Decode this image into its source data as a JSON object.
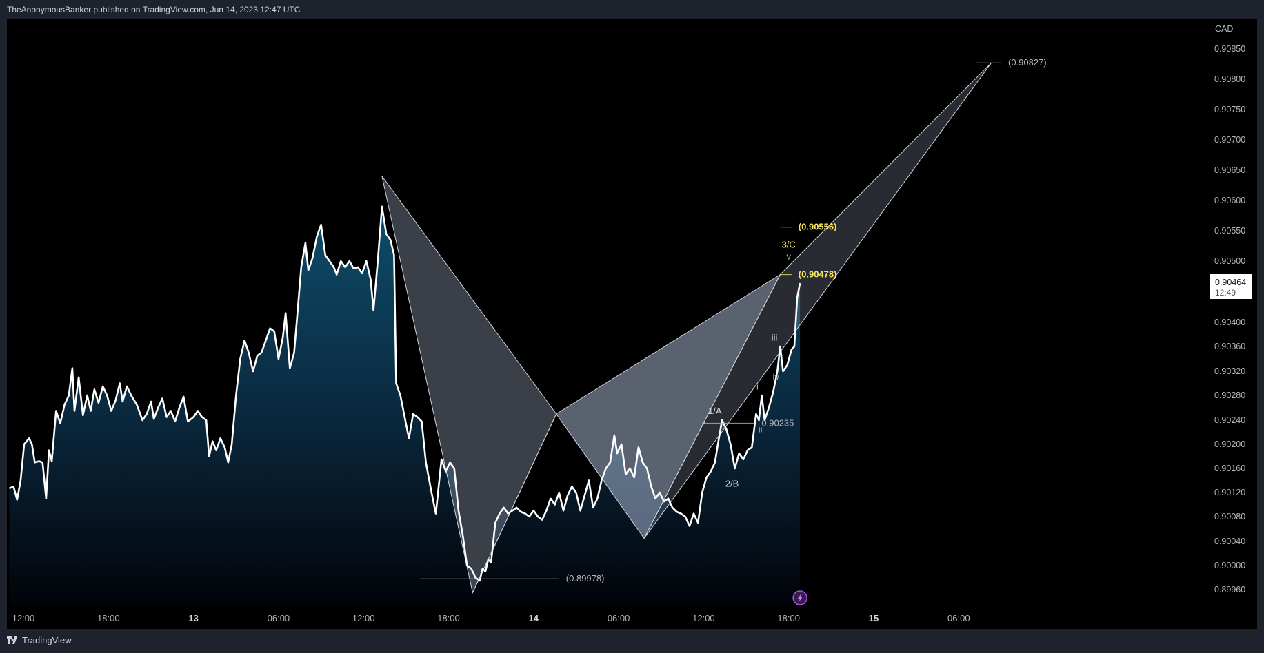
{
  "header": {
    "published_text": "TheAnonymousBanker published on TradingView.com, Jun 14, 2023 12:47 UTC"
  },
  "footer": {
    "brand": "TradingView"
  },
  "colors": {
    "background": "#000000",
    "price_line": "#ffffff",
    "area_top": "#0e4d6a",
    "pattern_fill": "#b4c4e0",
    "highlight": "#f5e663",
    "label_gray": "#b2b5be"
  },
  "chart_data": {
    "type": "area",
    "symbol_currency": "CAD",
    "last_price": {
      "value": "0.90464",
      "countdown": "12:49",
      "numeric": 0.90464
    },
    "x_axis": {
      "tick_labels": [
        {
          "t": 0,
          "label": "12:00",
          "bold": false
        },
        {
          "t": 6,
          "label": "18:00",
          "bold": false
        },
        {
          "t": 12,
          "label": "13",
          "bold": true
        },
        {
          "t": 18,
          "label": "06:00",
          "bold": false
        },
        {
          "t": 24,
          "label": "12:00",
          "bold": false
        },
        {
          "t": 30,
          "label": "18:00",
          "bold": false
        },
        {
          "t": 36,
          "label": "14",
          "bold": true
        },
        {
          "t": 42,
          "label": "06:00",
          "bold": false
        },
        {
          "t": 48,
          "label": "12:00",
          "bold": false
        },
        {
          "t": 54,
          "label": "18:00",
          "bold": false
        },
        {
          "t": 60,
          "label": "15",
          "bold": true
        },
        {
          "t": 66,
          "label": "06:00",
          "bold": false
        }
      ]
    },
    "y_axis": {
      "tick_labels": [
        "0.90850",
        "0.90800",
        "0.90750",
        "0.90700",
        "0.90650",
        "0.90600",
        "0.90550",
        "0.90500",
        "0.90400",
        "0.90360",
        "0.90320",
        "0.90280",
        "0.90240",
        "0.90200",
        "0.90160",
        "0.90120",
        "0.90080",
        "0.90040",
        "0.90000",
        "0.89960"
      ],
      "scale": "nonlinear"
    },
    "series": [
      {
        "values": [
          [
            -1.0,
            0.90127
          ],
          [
            -0.7,
            0.9013
          ],
          [
            -0.45,
            0.90108
          ],
          [
            -0.2,
            0.9014
          ],
          [
            0.05,
            0.902
          ],
          [
            0.4,
            0.9021
          ],
          [
            0.6,
            0.902
          ],
          [
            0.8,
            0.9017
          ],
          [
            1.1,
            0.90172
          ],
          [
            1.35,
            0.9017
          ],
          [
            1.6,
            0.9011
          ],
          [
            1.8,
            0.9019
          ],
          [
            2.0,
            0.90172
          ],
          [
            2.3,
            0.90255
          ],
          [
            2.6,
            0.90235
          ],
          [
            2.9,
            0.90265
          ],
          [
            3.2,
            0.9028
          ],
          [
            3.45,
            0.90325
          ],
          [
            3.6,
            0.90255
          ],
          [
            3.9,
            0.9031
          ],
          [
            4.2,
            0.90248
          ],
          [
            4.5,
            0.9028
          ],
          [
            4.75,
            0.90255
          ],
          [
            5.0,
            0.9029
          ],
          [
            5.3,
            0.90268
          ],
          [
            5.6,
            0.90295
          ],
          [
            5.9,
            0.9028
          ],
          [
            6.2,
            0.90255
          ],
          [
            6.5,
            0.90272
          ],
          [
            6.8,
            0.903
          ],
          [
            7.0,
            0.9027
          ],
          [
            7.3,
            0.90295
          ],
          [
            7.6,
            0.9028
          ],
          [
            8.0,
            0.90265
          ],
          [
            8.4,
            0.9024
          ],
          [
            8.7,
            0.9025
          ],
          [
            9.0,
            0.9027
          ],
          [
            9.2,
            0.90242
          ],
          [
            9.5,
            0.9026
          ],
          [
            9.8,
            0.90275
          ],
          [
            10.1,
            0.90245
          ],
          [
            10.4,
            0.90255
          ],
          [
            10.7,
            0.90238
          ],
          [
            11.0,
            0.9026
          ],
          [
            11.3,
            0.90278
          ],
          [
            11.6,
            0.90238
          ],
          [
            12.0,
            0.90245
          ],
          [
            12.3,
            0.90255
          ],
          [
            12.6,
            0.90245
          ],
          [
            12.9,
            0.9024
          ],
          [
            13.1,
            0.9018
          ],
          [
            13.35,
            0.90205
          ],
          [
            13.6,
            0.9019
          ],
          [
            13.9,
            0.9021
          ],
          [
            14.2,
            0.90195
          ],
          [
            14.45,
            0.9017
          ],
          [
            14.7,
            0.902
          ],
          [
            15.0,
            0.9028
          ],
          [
            15.3,
            0.9034
          ],
          [
            15.6,
            0.9037
          ],
          [
            15.9,
            0.9035
          ],
          [
            16.2,
            0.9032
          ],
          [
            16.5,
            0.90345
          ],
          [
            16.8,
            0.9035
          ],
          [
            17.1,
            0.9037
          ],
          [
            17.4,
            0.9039
          ],
          [
            17.7,
            0.90385
          ],
          [
            18.0,
            0.9034
          ],
          [
            18.3,
            0.90375
          ],
          [
            18.5,
            0.90415
          ],
          [
            18.8,
            0.90325
          ],
          [
            19.1,
            0.9035
          ],
          [
            19.3,
            0.90405
          ],
          [
            19.6,
            0.9049
          ],
          [
            19.9,
            0.9053
          ],
          [
            20.1,
            0.90485
          ],
          [
            20.4,
            0.90505
          ],
          [
            20.7,
            0.9054
          ],
          [
            21.0,
            0.9056
          ],
          [
            21.3,
            0.9051
          ],
          [
            21.6,
            0.905
          ],
          [
            21.9,
            0.9049
          ],
          [
            22.1,
            0.90478
          ],
          [
            22.4,
            0.905
          ],
          [
            22.7,
            0.9049
          ],
          [
            23.0,
            0.905
          ],
          [
            23.3,
            0.90488
          ],
          [
            23.6,
            0.9049
          ],
          [
            23.9,
            0.9048
          ],
          [
            24.2,
            0.905
          ],
          [
            24.5,
            0.9047
          ],
          [
            24.7,
            0.9042
          ],
          [
            25.0,
            0.905
          ],
          [
            25.3,
            0.9059
          ],
          [
            25.6,
            0.90545
          ],
          [
            25.9,
            0.90535
          ],
          [
            26.15,
            0.9051
          ],
          [
            26.3,
            0.903
          ],
          [
            26.6,
            0.9028
          ],
          [
            26.9,
            0.90245
          ],
          [
            27.2,
            0.9021
          ],
          [
            27.5,
            0.9025
          ],
          [
            27.8,
            0.90245
          ],
          [
            28.1,
            0.90238
          ],
          [
            28.4,
            0.9017
          ],
          [
            28.8,
            0.9012
          ],
          [
            29.1,
            0.90085
          ],
          [
            29.5,
            0.90175
          ],
          [
            29.8,
            0.90155
          ],
          [
            30.1,
            0.9017
          ],
          [
            30.4,
            0.9016
          ],
          [
            30.7,
            0.9009
          ],
          [
            31.0,
            0.9005
          ],
          [
            31.3,
            0.9
          ],
          [
            31.6,
            0.89995
          ],
          [
            31.9,
            0.8998
          ],
          [
            32.2,
            0.89975
          ],
          [
            32.4,
            0.89995
          ],
          [
            32.6,
            0.8999
          ],
          [
            32.8,
            0.9001
          ],
          [
            33.0,
            0.90005
          ],
          [
            33.3,
            0.9007
          ],
          [
            33.6,
            0.90085
          ],
          [
            33.9,
            0.90095
          ],
          [
            34.2,
            0.90085
          ],
          [
            34.5,
            0.9009
          ],
          [
            34.8,
            0.90095
          ],
          [
            35.1,
            0.90088
          ],
          [
            35.4,
            0.90085
          ],
          [
            35.7,
            0.9008
          ],
          [
            36.0,
            0.9009
          ],
          [
            36.3,
            0.9008
          ],
          [
            36.6,
            0.90075
          ],
          [
            36.9,
            0.9009
          ],
          [
            37.2,
            0.9011
          ],
          [
            37.5,
            0.901
          ],
          [
            37.8,
            0.9012
          ],
          [
            38.1,
            0.9009
          ],
          [
            38.4,
            0.90115
          ],
          [
            38.7,
            0.9013
          ],
          [
            39.0,
            0.9012
          ],
          [
            39.3,
            0.9009
          ],
          [
            39.6,
            0.90115
          ],
          [
            39.9,
            0.9014
          ],
          [
            40.2,
            0.90095
          ],
          [
            40.5,
            0.9011
          ],
          [
            40.8,
            0.9014
          ],
          [
            41.1,
            0.9016
          ],
          [
            41.4,
            0.9017
          ],
          [
            41.7,
            0.90215
          ],
          [
            41.9,
            0.90185
          ],
          [
            42.2,
            0.902
          ],
          [
            42.5,
            0.9015
          ],
          [
            42.8,
            0.9016
          ],
          [
            43.1,
            0.90145
          ],
          [
            43.4,
            0.90195
          ],
          [
            43.7,
            0.9017
          ],
          [
            44.0,
            0.9016
          ],
          [
            44.3,
            0.9013
          ],
          [
            44.6,
            0.9011
          ],
          [
            44.9,
            0.9012
          ],
          [
            45.2,
            0.90105
          ],
          [
            45.5,
            0.9011
          ],
          [
            45.8,
            0.90095
          ],
          [
            46.1,
            0.90088
          ],
          [
            46.4,
            0.90085
          ],
          [
            46.7,
            0.9008
          ],
          [
            47.0,
            0.90065
          ],
          [
            47.3,
            0.90085
          ],
          [
            47.6,
            0.9007
          ],
          [
            47.9,
            0.9012
          ],
          [
            48.2,
            0.90145
          ],
          [
            48.5,
            0.90155
          ],
          [
            48.8,
            0.9017
          ],
          [
            49.0,
            0.902
          ],
          [
            49.3,
            0.9024
          ],
          [
            49.6,
            0.90225
          ],
          [
            49.9,
            0.902
          ],
          [
            50.2,
            0.9016
          ],
          [
            50.5,
            0.90185
          ],
          [
            50.8,
            0.90175
          ],
          [
            51.1,
            0.9019
          ],
          [
            51.4,
            0.90195
          ],
          [
            51.7,
            0.9025
          ],
          [
            51.9,
            0.9024
          ],
          [
            52.1,
            0.9028
          ],
          [
            52.3,
            0.9024
          ],
          [
            52.6,
            0.9026
          ],
          [
            52.9,
            0.90285
          ],
          [
            53.2,
            0.9032
          ],
          [
            53.4,
            0.9036
          ],
          [
            53.6,
            0.9032
          ],
          [
            53.9,
            0.9033
          ],
          [
            54.2,
            0.90355
          ],
          [
            54.4,
            0.9036
          ],
          [
            54.6,
            0.9044
          ],
          [
            54.8,
            0.90464
          ]
        ]
      }
    ],
    "pattern": {
      "points": [
        {
          "t": 25.3,
          "p": 0.9064
        },
        {
          "t": 31.7,
          "p": 0.89955
        },
        {
          "t": 37.6,
          "p": 0.9025
        },
        {
          "t": 43.8,
          "p": 0.90045
        },
        {
          "t": 53.4,
          "p": 0.90478
        },
        {
          "t": 68.3,
          "p": 0.90827
        }
      ]
    },
    "horizontal_levels": [
      {
        "label": "(0.90827)",
        "p": 0.90827,
        "t_start": 67.2,
        "t_end": 69.0,
        "color": "#b2b5be"
      },
      {
        "label": "(0.90556)",
        "p": 0.90556,
        "t_start": 53.4,
        "t_end": 54.2,
        "color": "#f5e663"
      },
      {
        "label": "(0.90478)",
        "p": 0.90478,
        "t_start": 53.4,
        "t_end": 54.2,
        "color": "#f5e663"
      },
      {
        "label": "0.90235",
        "p": 0.90235,
        "t_start": 48.0,
        "t_end": 51.6,
        "color": "#b2b5be"
      },
      {
        "label": "(0.89978)",
        "p": 0.89978,
        "t_start": 28.0,
        "t_end": 37.8,
        "color": "#b2b5be"
      }
    ],
    "wave_labels": [
      {
        "text": "3/C",
        "t": 54.0,
        "p": 0.90522,
        "color": "#f5e663"
      },
      {
        "text": "v",
        "t": 54.0,
        "p": 0.90503,
        "color": "#b2b5be"
      },
      {
        "text": "1/A",
        "t": 48.8,
        "p": 0.9025,
        "color": "#d1d4dc"
      },
      {
        "text": "2/B",
        "t": 50.0,
        "p": 0.9013,
        "color": "#d1d4dc"
      },
      {
        "text": "i",
        "t": 51.8,
        "p": 0.9029,
        "color": "#b2b5be"
      },
      {
        "text": "ii",
        "t": 52.0,
        "p": 0.9022,
        "color": "#b2b5be"
      },
      {
        "text": "iii",
        "t": 53.0,
        "p": 0.9037,
        "color": "#b2b5be"
      },
      {
        "text": "iv",
        "t": 53.1,
        "p": 0.90305,
        "color": "#b2b5be"
      }
    ]
  }
}
